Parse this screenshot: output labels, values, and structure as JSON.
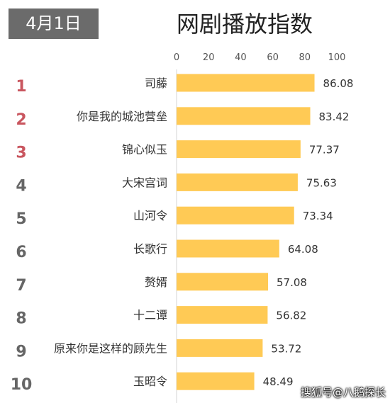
{
  "header": {
    "date": "4月1日",
    "title": "网剧播放指数"
  },
  "watermark": "搜狐号@八鹅探长",
  "colors": {
    "bar": "#FFCA55",
    "rank_top": "#C9565F",
    "rank_other": "#666666",
    "badge_bg": "#6b6b6b"
  },
  "chart_data": {
    "type": "bar",
    "orientation": "horizontal",
    "title": "网剧播放指数",
    "xlim": [
      0,
      100
    ],
    "ticks": [
      0,
      20,
      40,
      60,
      80,
      100
    ],
    "tick_labels": [
      "0",
      "20",
      "40",
      "60",
      "80",
      "100"
    ],
    "axis_position": "top",
    "grid": false,
    "ranks": [
      "1",
      "2",
      "3",
      "4",
      "5",
      "6",
      "7",
      "8",
      "9",
      "10"
    ],
    "categories": [
      "司藤",
      "你是我的城池营垒",
      "锦心似玉",
      "大宋宫词",
      "山河令",
      "长歌行",
      "赘婿",
      "十二谭",
      "原来你是这样的顾先生",
      "玉昭令"
    ],
    "values": [
      86.08,
      83.42,
      77.37,
      75.63,
      73.34,
      64.08,
      57.08,
      56.82,
      53.72,
      48.49
    ],
    "value_labels": [
      "86.08",
      "83.42",
      "77.37",
      "75.63",
      "73.34",
      "64.08",
      "57.08",
      "56.82",
      "53.72",
      "48.49"
    ]
  }
}
